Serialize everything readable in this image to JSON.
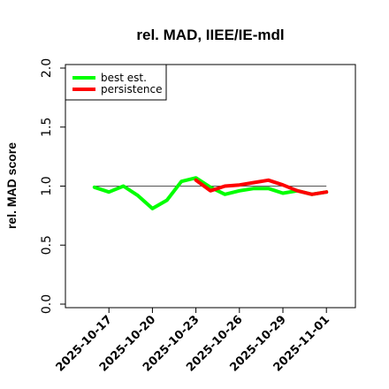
{
  "chart_data": {
    "type": "line",
    "title": "rel. MAD, IIEE/IE-mdl",
    "xlabel": "",
    "ylabel": "rel. MAD score",
    "ylim": [
      0,
      2
    ],
    "y_ticks": [
      "0.0",
      "0.5",
      "1.0",
      "1.5",
      "2.0"
    ],
    "x_tick_labels": [
      "2025-10-17",
      "2025-10-20",
      "2025-10-23",
      "2025-10-26",
      "2025-10-29",
      "2025-11-01"
    ],
    "x_range": [
      "2025-10-14",
      "2025-11-03"
    ],
    "reference_line": 1.0,
    "legend_position": "top-left",
    "series": [
      {
        "name": "best est.",
        "color": "#00ff00",
        "x": [
          "2025-10-16",
          "2025-10-17",
          "2025-10-18",
          "2025-10-19",
          "2025-10-20",
          "2025-10-21",
          "2025-10-22",
          "2025-10-23",
          "2025-10-24",
          "2025-10-25",
          "2025-10-26",
          "2025-10-27",
          "2025-10-28",
          "2025-10-29",
          "2025-10-30",
          "2025-10-31",
          "2025-11-01"
        ],
        "values": [
          0.99,
          0.95,
          1.0,
          0.92,
          0.81,
          0.88,
          1.04,
          1.07,
          0.99,
          0.93,
          0.96,
          0.98,
          0.98,
          0.94,
          0.96,
          0.93,
          0.95
        ]
      },
      {
        "name": "persistence",
        "color": "#ff0000",
        "x": [
          "2025-10-23",
          "2025-10-24",
          "2025-10-25",
          "2025-10-26",
          "2025-10-27",
          "2025-10-28",
          "2025-10-29",
          "2025-10-30",
          "2025-10-31",
          "2025-11-01"
        ],
        "values": [
          1.05,
          0.96,
          1.0,
          1.01,
          1.03,
          1.05,
          1.01,
          0.96,
          0.93,
          0.95
        ]
      }
    ]
  }
}
